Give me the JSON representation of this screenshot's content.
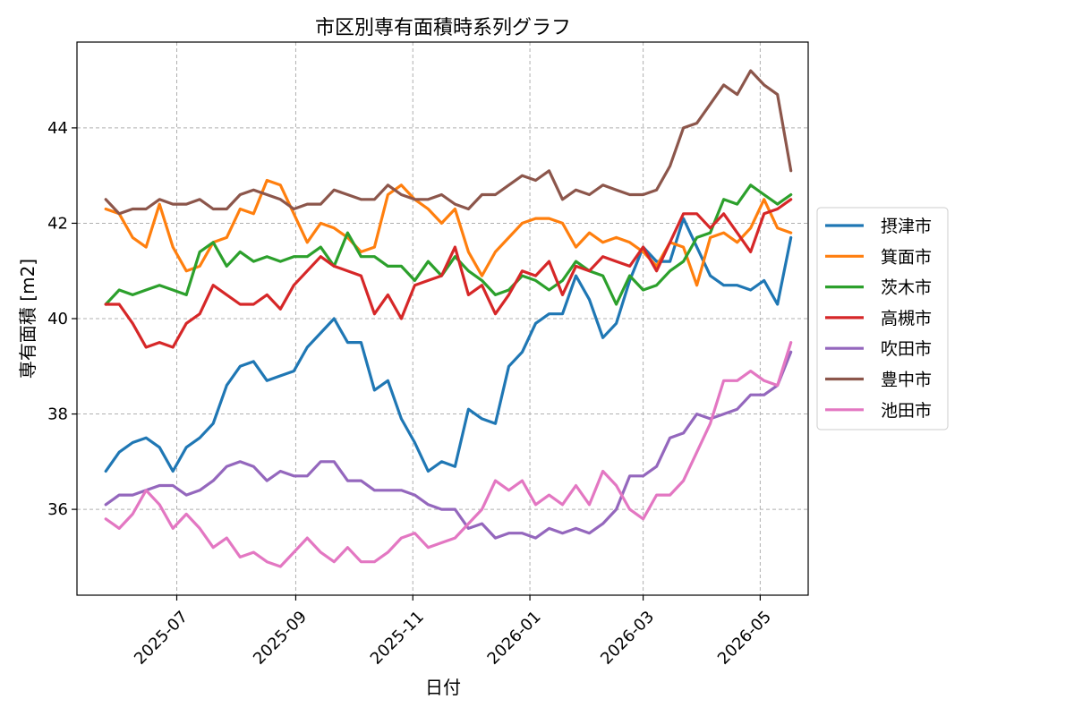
{
  "chart_data": {
    "type": "line",
    "title": "市区別専有面積時系列グラフ",
    "xlabel": "日付",
    "ylabel": "専有面積 [m2]",
    "x_type": "date",
    "xlim": [
      "2025-05-10",
      "2026-05-26"
    ],
    "ylim": [
      34.2,
      45.8
    ],
    "x_ticks": [
      "2025-07",
      "2025-09",
      "2025-11",
      "2026-01",
      "2026-03",
      "2026-05"
    ],
    "y_ticks": [
      36,
      38,
      40,
      42,
      44
    ],
    "grid": true,
    "legend_position": "right-outside",
    "dates": [
      "2025-05-25",
      "2025-06-01",
      "2025-06-08",
      "2025-06-15",
      "2025-06-22",
      "2025-06-29",
      "2025-07-06",
      "2025-07-13",
      "2025-07-20",
      "2025-07-27",
      "2025-08-03",
      "2025-08-10",
      "2025-08-17",
      "2025-08-24",
      "2025-08-31",
      "2025-09-07",
      "2025-09-14",
      "2025-09-21",
      "2025-09-28",
      "2025-10-05",
      "2025-10-12",
      "2025-10-19",
      "2025-10-26",
      "2025-11-02",
      "2025-11-09",
      "2025-11-16",
      "2025-11-23",
      "2025-11-30",
      "2025-12-07",
      "2025-12-14",
      "2025-12-21",
      "2025-12-28",
      "2026-01-04",
      "2026-01-11",
      "2026-01-18",
      "2026-01-25",
      "2026-02-01",
      "2026-02-08",
      "2026-02-15",
      "2026-02-22",
      "2026-03-01",
      "2026-03-08",
      "2026-03-15",
      "2026-03-22",
      "2026-03-29",
      "2026-04-05",
      "2026-04-12",
      "2026-04-19",
      "2026-04-26",
      "2026-05-03",
      "2026-05-10",
      "2026-05-17"
    ],
    "series": [
      {
        "name": "摂津市",
        "color": "#1f77b4",
        "values": [
          36.8,
          37.2,
          37.4,
          37.5,
          37.3,
          36.8,
          37.3,
          37.5,
          37.8,
          38.6,
          39.0,
          39.1,
          38.7,
          38.8,
          38.9,
          39.4,
          39.7,
          40.0,
          39.5,
          39.5,
          38.5,
          38.7,
          37.9,
          37.4,
          36.8,
          37.0,
          36.9,
          38.1,
          37.9,
          37.8,
          39.0,
          39.3,
          39.9,
          40.1,
          40.1,
          40.9,
          40.4,
          39.6,
          39.9,
          40.8,
          41.5,
          41.2,
          41.2,
          42.1,
          41.5,
          40.9,
          40.7,
          40.7,
          40.6,
          40.8,
          40.3,
          41.7
        ]
      },
      {
        "name": "箕面市",
        "color": "#ff7f0e",
        "values": [
          42.3,
          42.2,
          41.7,
          41.5,
          42.4,
          41.5,
          41.0,
          41.1,
          41.6,
          41.7,
          42.3,
          42.2,
          42.9,
          42.8,
          42.2,
          41.6,
          42.0,
          41.9,
          41.7,
          41.4,
          41.5,
          42.6,
          42.8,
          42.5,
          42.3,
          42.0,
          42.3,
          41.4,
          40.9,
          41.4,
          41.7,
          42.0,
          42.1,
          42.1,
          42.0,
          41.5,
          41.8,
          41.6,
          41.7,
          41.6,
          41.4,
          41.1,
          41.6,
          41.5,
          40.7,
          41.7,
          41.8,
          41.6,
          41.9,
          42.5,
          41.9,
          41.8
        ]
      },
      {
        "name": "茨木市",
        "color": "#2ca02c",
        "values": [
          40.3,
          40.6,
          40.5,
          40.6,
          40.7,
          40.6,
          40.5,
          41.4,
          41.6,
          41.1,
          41.4,
          41.2,
          41.3,
          41.2,
          41.3,
          41.3,
          41.5,
          41.1,
          41.8,
          41.3,
          41.3,
          41.1,
          41.1,
          40.8,
          41.2,
          40.9,
          41.3,
          41.0,
          40.8,
          40.5,
          40.6,
          40.9,
          40.8,
          40.6,
          40.8,
          41.2,
          41.0,
          40.9,
          40.3,
          40.9,
          40.6,
          40.7,
          41.0,
          41.2,
          41.7,
          41.8,
          42.5,
          42.4,
          42.8,
          42.6,
          42.4,
          42.6
        ]
      },
      {
        "name": "高槻市",
        "color": "#d62728",
        "values": [
          40.3,
          40.3,
          39.9,
          39.4,
          39.5,
          39.4,
          39.9,
          40.1,
          40.7,
          40.5,
          40.3,
          40.3,
          40.5,
          40.2,
          40.7,
          41.0,
          41.3,
          41.1,
          41.0,
          40.9,
          40.1,
          40.5,
          40.0,
          40.7,
          40.8,
          40.9,
          41.5,
          40.5,
          40.7,
          40.1,
          40.5,
          41.0,
          40.9,
          41.2,
          40.5,
          41.1,
          41.0,
          41.3,
          41.2,
          41.1,
          41.5,
          41.0,
          41.6,
          42.2,
          42.2,
          41.9,
          42.2,
          41.8,
          41.4,
          42.2,
          42.3,
          42.5
        ]
      },
      {
        "name": "吹田市",
        "color": "#9467bd",
        "values": [
          36.1,
          36.3,
          36.3,
          36.4,
          36.5,
          36.5,
          36.3,
          36.4,
          36.6,
          36.9,
          37.0,
          36.9,
          36.6,
          36.8,
          36.7,
          36.7,
          37.0,
          37.0,
          36.6,
          36.6,
          36.4,
          36.4,
          36.4,
          36.3,
          36.1,
          36.0,
          36.0,
          35.6,
          35.7,
          35.4,
          35.5,
          35.5,
          35.4,
          35.6,
          35.5,
          35.6,
          35.5,
          35.7,
          36.0,
          36.7,
          36.7,
          36.9,
          37.5,
          37.6,
          38.0,
          37.9,
          38.0,
          38.1,
          38.4,
          38.4,
          38.6,
          39.3
        ]
      },
      {
        "name": "豊中市",
        "color": "#8c564b",
        "values": [
          42.5,
          42.2,
          42.3,
          42.3,
          42.5,
          42.4,
          42.4,
          42.5,
          42.3,
          42.3,
          42.6,
          42.7,
          42.6,
          42.5,
          42.3,
          42.4,
          42.4,
          42.7,
          42.6,
          42.5,
          42.5,
          42.8,
          42.6,
          42.5,
          42.5,
          42.6,
          42.4,
          42.3,
          42.6,
          42.6,
          42.8,
          43.0,
          42.9,
          43.1,
          42.5,
          42.7,
          42.6,
          42.8,
          42.7,
          42.6,
          42.6,
          42.7,
          43.2,
          44.0,
          44.1,
          44.5,
          44.9,
          44.7,
          45.2,
          44.9,
          44.7,
          43.1
        ]
      },
      {
        "name": "池田市",
        "color": "#e377c2",
        "values": [
          35.8,
          35.6,
          35.9,
          36.4,
          36.1,
          35.6,
          35.9,
          35.6,
          35.2,
          35.4,
          35.0,
          35.1,
          34.9,
          34.8,
          35.1,
          35.4,
          35.1,
          34.9,
          35.2,
          34.9,
          34.9,
          35.1,
          35.4,
          35.5,
          35.2,
          35.3,
          35.4,
          35.7,
          36.0,
          36.6,
          36.4,
          36.6,
          36.1,
          36.3,
          36.1,
          36.5,
          36.1,
          36.8,
          36.5,
          36.0,
          35.8,
          36.3,
          36.3,
          36.6,
          37.2,
          37.8,
          38.7,
          38.7,
          38.9,
          38.7,
          38.6,
          39.5
        ]
      }
    ]
  }
}
